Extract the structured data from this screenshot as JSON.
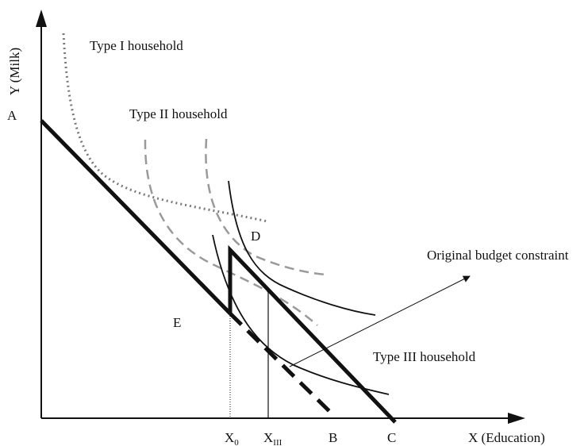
{
  "diagram": {
    "axes": {
      "y_label": "Y (Milk)",
      "x_label": "X (Education)"
    },
    "points": {
      "A": "A",
      "B": "B",
      "C": "C",
      "D": "D",
      "E": "E"
    },
    "x_marks": {
      "x0_main": "X",
      "x0_sub": "0",
      "xiii_main": "X",
      "xiii_sub": "III"
    },
    "annotations": {
      "type1": "Type I household",
      "type2": "Type II household",
      "type3": "Type III household",
      "original_budget": "Original budget constraint"
    },
    "colors": {
      "line": "#111111",
      "type1_curve": "#7a7a7a",
      "type2_curve": "#9a9a9a",
      "background": "#ffffff"
    }
  }
}
